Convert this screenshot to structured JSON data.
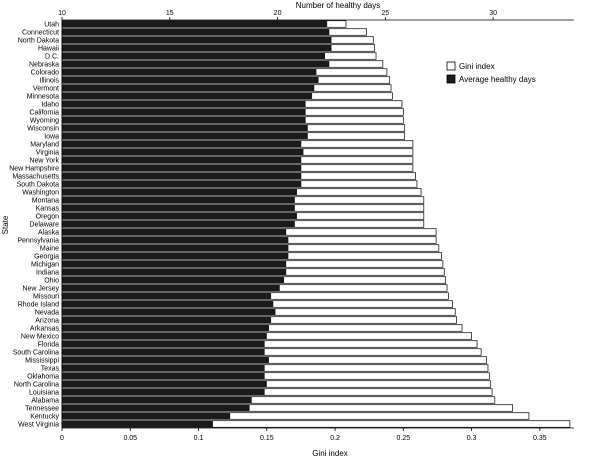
{
  "chart_data": {
    "type": "bar",
    "orientation": "horizontal",
    "title": "",
    "ylabel": "State",
    "x_bottom": {
      "label": "Gini index",
      "range": [
        0,
        0.375
      ],
      "ticks": [
        0,
        0.05,
        0.1,
        0.15,
        0.2,
        0.25,
        0.3,
        0.35
      ],
      "tick_labels": [
        "0",
        "0.05",
        "0.1",
        "0.15",
        "0.2",
        "0.25",
        "0.3",
        "0.35"
      ]
    },
    "x_top": {
      "label": "Number of healthy days",
      "range": [
        10,
        33.75
      ],
      "ticks": [
        10,
        15,
        20,
        25,
        30
      ],
      "tick_labels": [
        "10",
        "15",
        "20",
        "25",
        "30"
      ]
    },
    "legend": {
      "placement": "top-right",
      "entries": [
        {
          "label": "Gini index",
          "color": "#ffffff"
        },
        {
          "label": "Average healthy days",
          "color": "#1a1a1a"
        }
      ]
    },
    "colors": {
      "gini": "#ffffff",
      "healthy_days": "#1a1a1a",
      "outline": "#000000"
    },
    "categories": [
      "Utah",
      "Connecticut",
      "North Dakota",
      "Hawaii",
      "D.C.",
      "Nebraska",
      "Colorado",
      "Illinois",
      "Vermont",
      "Minnesota",
      "Idaho",
      "California",
      "Wyoming",
      "Wisconsin",
      "Iowa",
      "Maryland",
      "Virginia",
      "New York",
      "New Hampshire",
      "Massachusetts",
      "South Dakota",
      "Washington",
      "Montana",
      "Kansas",
      "Oregon",
      "Delaware",
      "Alaska",
      "Pennsylvania",
      "Maine",
      "Georgia",
      "Michigan",
      "Indiana",
      "Ohio",
      "New Jersey",
      "Missouri",
      "Rhode Island",
      "Nevada",
      "Arizona",
      "Arkansas",
      "New Mexico",
      "Florida",
      "South Carolina",
      "Mississippi",
      "Texas",
      "Oklahoma",
      "North Carolina",
      "Louisiana",
      "Alabama",
      "Tennessee",
      "Kentucky",
      "West Virginia"
    ],
    "series": [
      {
        "name": "Gini index",
        "axis": "bottom",
        "values": [
          0.208,
          0.223,
          0.228,
          0.229,
          0.23,
          0.235,
          0.238,
          0.24,
          0.241,
          0.242,
          0.249,
          0.25,
          0.25,
          0.251,
          0.251,
          0.257,
          0.257,
          0.257,
          0.257,
          0.259,
          0.26,
          0.263,
          0.265,
          0.265,
          0.265,
          0.265,
          0.274,
          0.274,
          0.276,
          0.278,
          0.279,
          0.28,
          0.281,
          0.282,
          0.283,
          0.286,
          0.288,
          0.289,
          0.293,
          0.3,
          0.304,
          0.307,
          0.311,
          0.312,
          0.313,
          0.314,
          0.315,
          0.317,
          0.33,
          0.342,
          0.372
        ]
      },
      {
        "name": "Average healthy days",
        "axis": "top",
        "values": [
          22.3,
          22.4,
          22.5,
          22.5,
          22.2,
          22.4,
          21.8,
          21.9,
          21.7,
          21.6,
          21.3,
          21.3,
          21.3,
          21.4,
          21.4,
          21.1,
          21.2,
          21.1,
          21.1,
          21.1,
          21.1,
          20.9,
          20.8,
          20.8,
          20.9,
          20.8,
          20.4,
          20.5,
          20.5,
          20.5,
          20.4,
          20.4,
          20.3,
          20.1,
          19.7,
          19.8,
          19.9,
          19.7,
          19.6,
          19.5,
          19.4,
          19.4,
          19.6,
          19.4,
          19.4,
          19.5,
          19.4,
          18.8,
          18.7,
          17.8,
          17.0
        ]
      }
    ]
  }
}
